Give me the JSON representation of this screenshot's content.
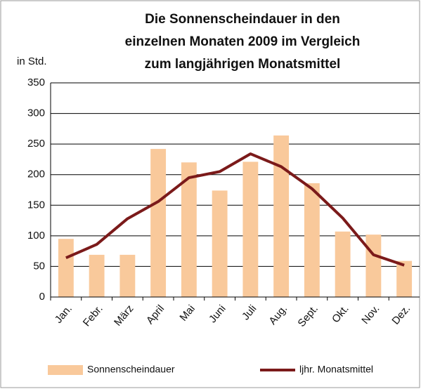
{
  "chart_data": {
    "type": "bar",
    "title": [
      "Die Sonnenscheindauer in den",
      "einzelnen Monaten 2009 im Vergleich",
      "zum langjährigen Monatsmittel"
    ],
    "y_label": "in Std.",
    "categories": [
      "Jan.",
      "Febr.",
      "März",
      "April",
      "Mai",
      "Juni",
      "Juli",
      "Aug.",
      "Sept.",
      "Okt.",
      "Nov.",
      "Dez."
    ],
    "series": [
      {
        "name": "Sonnenscheindauer",
        "type": "bar",
        "color": "#f9c99b",
        "values": [
          95,
          69,
          69,
          242,
          220,
          174,
          221,
          264,
          186,
          107,
          102,
          59
        ]
      },
      {
        "name": "ljhr. Monatsmittel",
        "type": "line",
        "color": "#7b1a1a",
        "values": [
          64,
          86,
          128,
          156,
          195,
          205,
          234,
          213,
          177,
          129,
          69,
          52
        ]
      }
    ],
    "ylim": [
      0,
      350
    ],
    "yticks": [
      0,
      50,
      100,
      150,
      200,
      250,
      300,
      350
    ],
    "grid": true,
    "legend": "bottom"
  }
}
